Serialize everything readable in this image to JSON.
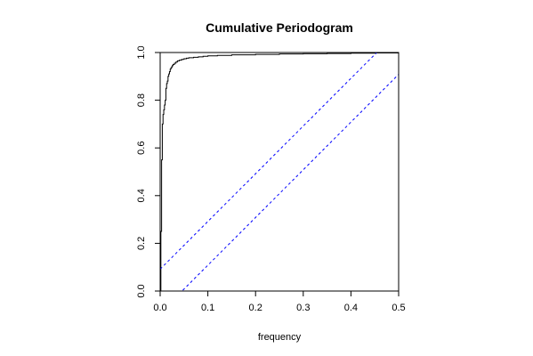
{
  "chart_data": {
    "type": "line",
    "title": "Cumulative Periodogram",
    "xlabel": "frequency",
    "ylabel": "",
    "xlim": [
      0,
      0.5
    ],
    "ylim": [
      0,
      1
    ],
    "x_ticks": [
      0.0,
      0.1,
      0.2,
      0.3,
      0.4,
      0.5
    ],
    "x_tick_labels": [
      "0.0",
      "0.1",
      "0.2",
      "0.3",
      "0.4",
      "0.5"
    ],
    "y_ticks": [
      0.0,
      0.2,
      0.4,
      0.6,
      0.8,
      1.0
    ],
    "y_tick_labels": [
      "0.0",
      "0.2",
      "0.4",
      "0.6",
      "0.8",
      "1.0"
    ],
    "grid": false,
    "series": [
      {
        "color": "#000000",
        "style": "step",
        "x": [
          0.0,
          0.0015,
          0.003,
          0.0045,
          0.006,
          0.0075,
          0.009,
          0.0105,
          0.012,
          0.0135,
          0.015,
          0.0165,
          0.018,
          0.0195,
          0.021,
          0.0225,
          0.024,
          0.0255,
          0.027,
          0.03,
          0.033,
          0.036,
          0.04,
          0.045,
          0.05,
          0.055,
          0.06,
          0.07,
          0.08,
          0.09,
          0.1,
          0.12,
          0.15,
          0.2,
          0.25,
          0.3,
          0.35,
          0.4,
          0.45,
          0.5
        ],
        "values": [
          0.0,
          0.25,
          0.55,
          0.7,
          0.74,
          0.76,
          0.78,
          0.8,
          0.85,
          0.87,
          0.88,
          0.9,
          0.91,
          0.92,
          0.93,
          0.935,
          0.94,
          0.945,
          0.95,
          0.955,
          0.96,
          0.965,
          0.968,
          0.971,
          0.974,
          0.976,
          0.978,
          0.98,
          0.982,
          0.984,
          0.986,
          0.988,
          0.99,
          0.992,
          0.994,
          0.995,
          0.996,
          0.997,
          0.998,
          1.0
        ]
      },
      {
        "color": "#0000ff",
        "style": "dashed",
        "x": [
          0.0,
          0.5
        ],
        "values": [
          0.0917,
          1.0917
        ]
      },
      {
        "color": "#0000ff",
        "style": "dashed",
        "x": [
          0.0,
          0.5
        ],
        "values": [
          -0.0917,
          0.9083
        ]
      }
    ]
  }
}
